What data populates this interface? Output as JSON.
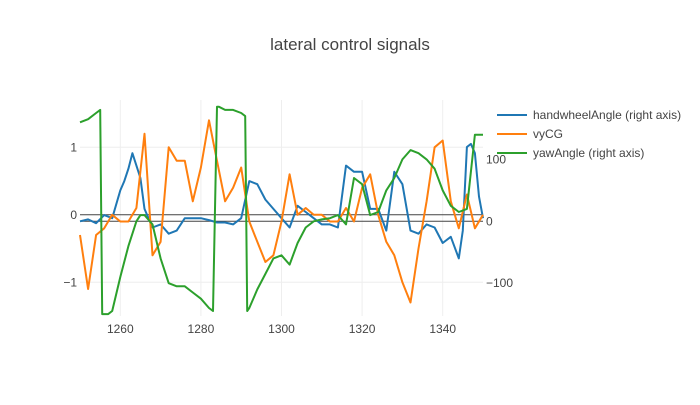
{
  "chart_data": {
    "type": "line",
    "title": "lateral control signals",
    "x_ticks": [
      1260,
      1280,
      1300,
      1320,
      1340
    ],
    "x_range": [
      1250,
      1350
    ],
    "y_left": {
      "ticks": [
        -1,
        0,
        1
      ],
      "range": [
        -1.5,
        1.7
      ]
    },
    "y_right": {
      "ticks": [
        -100,
        0,
        100
      ],
      "range": [
        -153,
        196
      ]
    },
    "legend_position": "right",
    "series": [
      {
        "name": "handwheelAngle (right axis)",
        "axis": "right",
        "color": "#1f77b4",
        "x": [
          1250,
          1252,
          1254,
          1256,
          1258,
          1260,
          1261,
          1262,
          1263,
          1264,
          1265,
          1266,
          1268,
          1270,
          1272,
          1274,
          1276,
          1278,
          1280,
          1282,
          1284,
          1286,
          1288,
          1290,
          1292,
          1294,
          1296,
          1298,
          1300,
          1302,
          1304,
          1306,
          1308,
          1310,
          1312,
          1314,
          1316,
          1318,
          1320,
          1322,
          1324,
          1326,
          1328,
          1330,
          1332,
          1334,
          1336,
          1338,
          1340,
          1342,
          1344,
          1345,
          1346,
          1347,
          1348,
          1349,
          1350
        ],
        "y": [
          0,
          3,
          -3,
          10,
          5,
          50,
          65,
          85,
          110,
          90,
          70,
          20,
          -10,
          -5,
          -20,
          -15,
          5,
          5,
          5,
          2,
          -2,
          -2,
          -5,
          5,
          65,
          60,
          35,
          20,
          5,
          -10,
          25,
          15,
          5,
          -5,
          -5,
          -10,
          90,
          80,
          80,
          20,
          20,
          -15,
          80,
          60,
          -15,
          -20,
          -5,
          -10,
          -35,
          -25,
          -60,
          -15,
          120,
          125,
          110,
          40,
          5
        ]
      },
      {
        "name": "vyCG",
        "axis": "left",
        "color": "#ff7f0e",
        "x": [
          1250,
          1252,
          1254,
          1256,
          1258,
          1260,
          1262,
          1264,
          1266,
          1268,
          1270,
          1272,
          1274,
          1276,
          1278,
          1280,
          1282,
          1284,
          1286,
          1288,
          1290,
          1292,
          1294,
          1296,
          1298,
          1300,
          1302,
          1304,
          1306,
          1308,
          1310,
          1312,
          1314,
          1316,
          1318,
          1320,
          1322,
          1324,
          1326,
          1328,
          1330,
          1332,
          1334,
          1336,
          1338,
          1340,
          1342,
          1344,
          1346,
          1348,
          1350
        ],
        "y": [
          -0.3,
          -1.1,
          -0.3,
          -0.2,
          0,
          -0.1,
          -0.1,
          0.1,
          1.2,
          -0.6,
          -0.4,
          1,
          0.8,
          0.8,
          0.2,
          0.7,
          1.4,
          0.8,
          0.2,
          0.4,
          0.7,
          -0.1,
          -0.4,
          -0.7,
          -0.6,
          -0.1,
          0.6,
          0,
          0.1,
          0,
          0,
          -0.1,
          -0.1,
          0.1,
          -0.1,
          0.4,
          0.6,
          0,
          -0.4,
          -0.6,
          -1,
          -1.3,
          -0.5,
          0.2,
          1.0,
          1.1,
          0.2,
          -0.2,
          0.3,
          -0.2,
          0
        ]
      },
      {
        "name": "yawAngle (right axis)",
        "axis": "right",
        "color": "#2ca02c",
        "x": [
          1250,
          1252,
          1254,
          1255,
          1255.5,
          1257,
          1258,
          1260,
          1262,
          1264,
          1265,
          1266,
          1268,
          1270,
          1272,
          1274,
          1276,
          1278,
          1280,
          1282,
          1283,
          1284,
          1284.5,
          1286,
          1288,
          1290,
          1291,
          1291.5,
          1292,
          1294,
          1296,
          1298,
          1300,
          1302,
          1304,
          1306,
          1308,
          1310,
          1312,
          1314,
          1316,
          1318,
          1320,
          1322,
          1324,
          1326,
          1328,
          1330,
          1332,
          1334,
          1336,
          1338,
          1340,
          1342,
          1344,
          1346,
          1348,
          1350
        ],
        "y": [
          160,
          165,
          175,
          180,
          -150,
          -150,
          -145,
          -90,
          -40,
          0,
          10,
          10,
          -5,
          -60,
          -100,
          -105,
          -105,
          -115,
          -125,
          -140,
          -145,
          185,
          185,
          180,
          180,
          175,
          170,
          -145,
          -140,
          -110,
          -85,
          -60,
          -55,
          -70,
          -35,
          -10,
          0,
          3,
          5,
          10,
          -5,
          70,
          60,
          10,
          15,
          50,
          70,
          100,
          115,
          110,
          100,
          85,
          50,
          25,
          15,
          20,
          140,
          140
        ]
      }
    ]
  }
}
